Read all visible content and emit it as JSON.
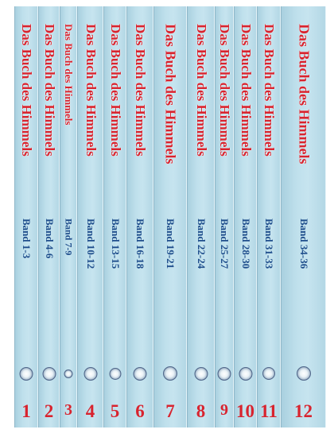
{
  "volumes": [
    {
      "title": "Das Buch des Himmels",
      "band": "Band 1-3",
      "number": "1"
    },
    {
      "title": "Das Buch des Himmels",
      "band": "Band 4-6",
      "number": "2"
    },
    {
      "title": "Das Buch des Himmels",
      "band": "Band 7-9",
      "number": "3"
    },
    {
      "title": "Das Buch des Himmels",
      "band": "Band 10-12",
      "number": "4"
    },
    {
      "title": "Das Buch des Himmels",
      "band": "Band 13-15",
      "number": "5"
    },
    {
      "title": "Das Buch des Himmels",
      "band": "Band 16-18",
      "number": "6"
    },
    {
      "title": "Das Buch des Himmels",
      "band": "Band 19-21",
      "number": "7"
    },
    {
      "title": "Das Buch des Himmels",
      "band": "Band 22-24",
      "number": "8"
    },
    {
      "title": "Das Buch des Himmels",
      "band": "Band 25-27",
      "number": "9"
    },
    {
      "title": "Das Buch des Himmels",
      "band": "Band 28-30",
      "number": "10"
    },
    {
      "title": "Das Buch des Himmels",
      "band": "Band 31-33",
      "number": "11"
    },
    {
      "title": "Das Buch des Himmels",
      "band": "Band 34-36",
      "number": "12"
    }
  ],
  "colors": {
    "spine": "#bfe0ec",
    "title": "#d8242f",
    "band": "#1f4e8c",
    "number": "#d8242f"
  },
  "emblem_icon": "seal-emblem-icon"
}
